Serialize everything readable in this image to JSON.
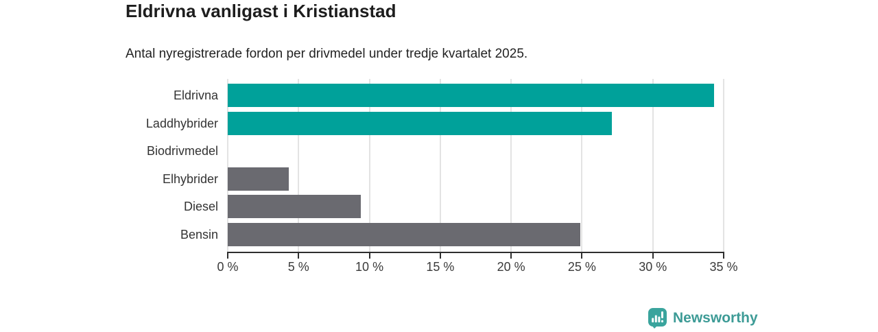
{
  "chart_data": {
    "type": "bar",
    "orientation": "horizontal",
    "title": "Eldrivna vanligast i Kristianstad",
    "subtitle": "Antal nyregistrerade fordon per drivmedel under tredje kvartalet 2025.",
    "categories": [
      "Eldrivna",
      "Laddhybrider",
      "Biodrivmedel",
      "Elhybrider",
      "Diesel",
      "Bensin"
    ],
    "values": [
      34.3,
      27.1,
      0,
      4.3,
      9.4,
      24.9
    ],
    "unit": "%",
    "xlim": [
      0,
      35
    ],
    "x_ticks": [
      0,
      5,
      10,
      15,
      20,
      25,
      30,
      35
    ],
    "x_tick_labels": [
      "0 %",
      "5 %",
      "10 %",
      "15 %",
      "20 %",
      "25 %",
      "30 %",
      "35 %"
    ],
    "grid": "vertical-only",
    "legend": "none",
    "highlight_color": "#00a19a",
    "base_color": "#6a6a70",
    "bar_colors": [
      "#00a19a",
      "#00a19a",
      "#6a6a70",
      "#6a6a70",
      "#6a6a70",
      "#6a6a70"
    ],
    "gridline_color": "#e3e3e3",
    "axis_color": "#2e2e2e"
  },
  "logo": {
    "text": "Newsworthy",
    "icon": "newsworthy-chart-bubble-icon",
    "text_color": "#3d9b96",
    "icon_color": "#3aa49d"
  }
}
